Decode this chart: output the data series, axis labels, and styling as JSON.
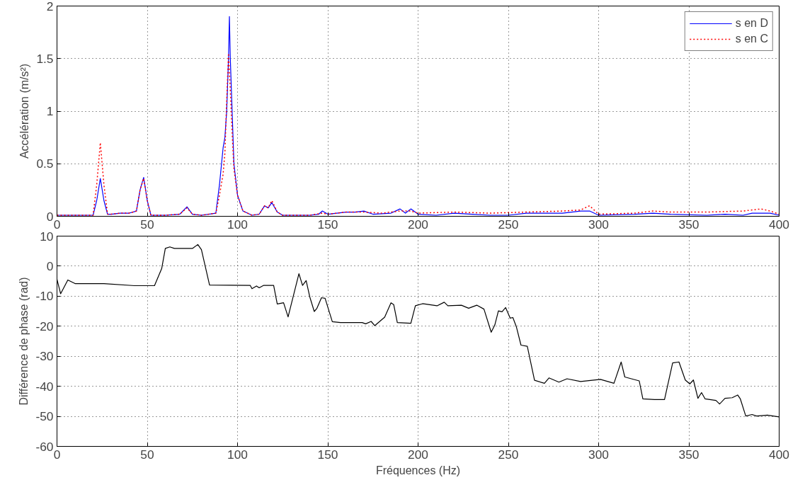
{
  "chart_data": [
    {
      "type": "line",
      "ylabel": "Accélération (m/s²)",
      "xlim": [
        0,
        400
      ],
      "ylim": [
        0,
        2
      ],
      "xticks": [
        0,
        50,
        100,
        150,
        200,
        250,
        300,
        350,
        400
      ],
      "yticks": [
        0,
        0.5,
        1,
        1.5,
        2
      ],
      "grid": true,
      "legend": "top right",
      "series": [
        {
          "name": "s en D",
          "color": "#0000ff",
          "line_style": "solid",
          "x": [
            0,
            20,
            22,
            24,
            26,
            28,
            30,
            35,
            40,
            44,
            46,
            48,
            50,
            52,
            60,
            68,
            72,
            75,
            80,
            88,
            90,
            92,
            93,
            94,
            95,
            95.5,
            96,
            97,
            98,
            100,
            103,
            108,
            112,
            115,
            117,
            119,
            122,
            125,
            140,
            145,
            147,
            150,
            160,
            165,
            170,
            175,
            185,
            190,
            193,
            196,
            200,
            210,
            220,
            230,
            240,
            250,
            260,
            270,
            280,
            290,
            295,
            300,
            320,
            330,
            340,
            360,
            370,
            380,
            385,
            395,
            400
          ],
          "values": [
            0.01,
            0.01,
            0.15,
            0.36,
            0.15,
            0.02,
            0.02,
            0.03,
            0.03,
            0.05,
            0.25,
            0.37,
            0.15,
            0.01,
            0.01,
            0.02,
            0.09,
            0.02,
            0.01,
            0.03,
            0.3,
            0.65,
            0.75,
            1.0,
            1.5,
            1.9,
            1.5,
            1.0,
            0.5,
            0.2,
            0.05,
            0.01,
            0.02,
            0.1,
            0.08,
            0.13,
            0.04,
            0.01,
            0.01,
            0.02,
            0.05,
            0.02,
            0.04,
            0.04,
            0.05,
            0.02,
            0.03,
            0.07,
            0.03,
            0.07,
            0.02,
            0.01,
            0.03,
            0.02,
            0.01,
            0.01,
            0.03,
            0.03,
            0.03,
            0.05,
            0.05,
            0.01,
            0.02,
            0.03,
            0.02,
            0.01,
            0.02,
            0.01,
            0.03,
            0.03,
            0.01
          ]
        },
        {
          "name": "s en C",
          "color": "#ff0000",
          "line_style": "dotted",
          "x": [
            0,
            20,
            22,
            24,
            26,
            28,
            30,
            35,
            40,
            44,
            46,
            48,
            50,
            52,
            60,
            68,
            72,
            75,
            80,
            88,
            90,
            92,
            93,
            94,
            95,
            96,
            97,
            98,
            100,
            103,
            108,
            112,
            115,
            117,
            119,
            122,
            125,
            140,
            147,
            150,
            160,
            170,
            180,
            190,
            196,
            200,
            220,
            240,
            260,
            280,
            290,
            295,
            300,
            320,
            330,
            340,
            360,
            380,
            390,
            395,
            400
          ],
          "values": [
            0.01,
            0.01,
            0.3,
            0.7,
            0.3,
            0.02,
            0.02,
            0.03,
            0.03,
            0.05,
            0.25,
            0.36,
            0.15,
            0.01,
            0.01,
            0.02,
            0.08,
            0.02,
            0.01,
            0.03,
            0.2,
            0.4,
            0.6,
            1.1,
            1.55,
            1.2,
            0.8,
            0.45,
            0.2,
            0.05,
            0.01,
            0.02,
            0.1,
            0.08,
            0.15,
            0.04,
            0.01,
            0.01,
            0.03,
            0.02,
            0.04,
            0.04,
            0.03,
            0.05,
            0.05,
            0.03,
            0.04,
            0.03,
            0.04,
            0.05,
            0.06,
            0.1,
            0.02,
            0.03,
            0.05,
            0.04,
            0.04,
            0.05,
            0.07,
            0.05,
            0.02
          ]
        }
      ]
    },
    {
      "type": "line",
      "xlabel": "Fréquences (Hz)",
      "ylabel": "Différence de phase (rad)",
      "xlim": [
        0,
        400
      ],
      "ylim": [
        -60,
        10
      ],
      "xticks": [
        0,
        50,
        100,
        150,
        200,
        250,
        300,
        350,
        400
      ],
      "yticks": [
        -60,
        -50,
        -40,
        -30,
        -20,
        -10,
        0,
        10
      ],
      "grid": true,
      "series": [
        {
          "color": "#000000",
          "line_style": "solid",
          "x": [
            0,
            2,
            6,
            10,
            26,
            43,
            54,
            58,
            60,
            62.5,
            65,
            75,
            78,
            80,
            84.5,
            107,
            108,
            110.5,
            112,
            114.5,
            120,
            122,
            125.5,
            128,
            134,
            136,
            138,
            140,
            142.5,
            144,
            146.5,
            148.5,
            152.5,
            157,
            169,
            171,
            174,
            176,
            181.5,
            185,
            186.5,
            188.5,
            196,
            198.5,
            202.5,
            210.5,
            214.5,
            216.5,
            224,
            228,
            232.5,
            236.5,
            240.5,
            242.5,
            244.5,
            246.5,
            248.5,
            251,
            252.5,
            254.5,
            257,
            260.5,
            264.5,
            270,
            272.5,
            278,
            282.5,
            290,
            301,
            308.5,
            312.5,
            314.5,
            322.5,
            324.5,
            331,
            336.5,
            341,
            344.5,
            348,
            350.5,
            352.5,
            355,
            357,
            359,
            365,
            367,
            370,
            374,
            377,
            378.5,
            381.5,
            385,
            387.5,
            393.5,
            400
          ],
          "values": [
            -4.4,
            -9.2,
            -4.6,
            -5.8,
            -5.8,
            -6.5,
            -6.5,
            -0.8,
            5.9,
            6.4,
            5.9,
            5.9,
            7.2,
            5.5,
            -6.3,
            -6.4,
            -7.5,
            -6.6,
            -7.2,
            -6.4,
            -6.4,
            -12.6,
            -12.2,
            -16.9,
            -2.5,
            -6.4,
            -4.8,
            -10.2,
            -15.1,
            -14.0,
            -10.5,
            -10.7,
            -18.5,
            -18.8,
            -18.8,
            -19.2,
            -18.4,
            -19.8,
            -17.0,
            -12.2,
            -12.8,
            -18.8,
            -19.0,
            -13.2,
            -12.5,
            -13.2,
            -12.0,
            -13.2,
            -13.0,
            -14.0,
            -13.0,
            -14.3,
            -22.0,
            -19.6,
            -14.9,
            -15.2,
            -13.8,
            -17.3,
            -17.1,
            -20.3,
            -26.3,
            -26.7,
            -38.0,
            -39.0,
            -37.2,
            -38.6,
            -37.5,
            -38.4,
            -37.7,
            -39.0,
            -31.9,
            -36.9,
            -38.2,
            -44.2,
            -44.4,
            -44.4,
            -32.2,
            -31.9,
            -37.9,
            -39.2,
            -37.9,
            -44.0,
            -42.1,
            -44.2,
            -44.7,
            -45.9,
            -44.0,
            -43.8,
            -42.9,
            -44.2,
            -49.9,
            -49.4,
            -49.9,
            -49.6,
            -50.2
          ]
        }
      ]
    }
  ]
}
